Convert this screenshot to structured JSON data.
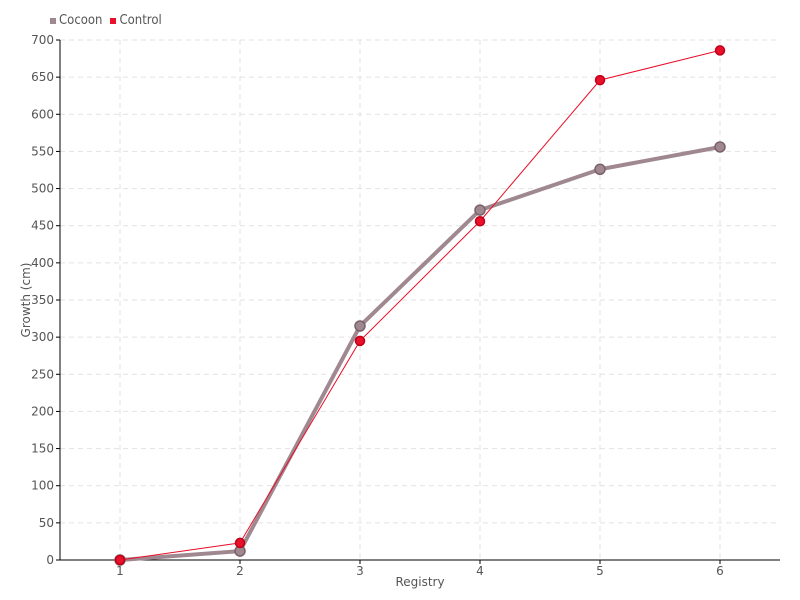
{
  "chart_data": {
    "type": "line",
    "title": "",
    "xlabel": "Registry",
    "ylabel": "Growth (cm)",
    "x": [
      1,
      2,
      3,
      4,
      5,
      6
    ],
    "xlim": [
      0.5,
      6.5
    ],
    "ylim": [
      0,
      700
    ],
    "yticks": [
      0,
      50,
      100,
      150,
      200,
      250,
      300,
      350,
      400,
      450,
      500,
      550,
      600,
      650,
      700
    ],
    "grid": true,
    "legend_position": "top-left",
    "series": [
      {
        "name": "Cocoon",
        "color": "#a08890",
        "values": [
          0,
          12,
          315,
          471,
          526,
          556
        ]
      },
      {
        "name": "Control",
        "color": "#e8102a",
        "values": [
          0,
          23,
          295,
          456,
          646,
          686
        ]
      }
    ]
  }
}
